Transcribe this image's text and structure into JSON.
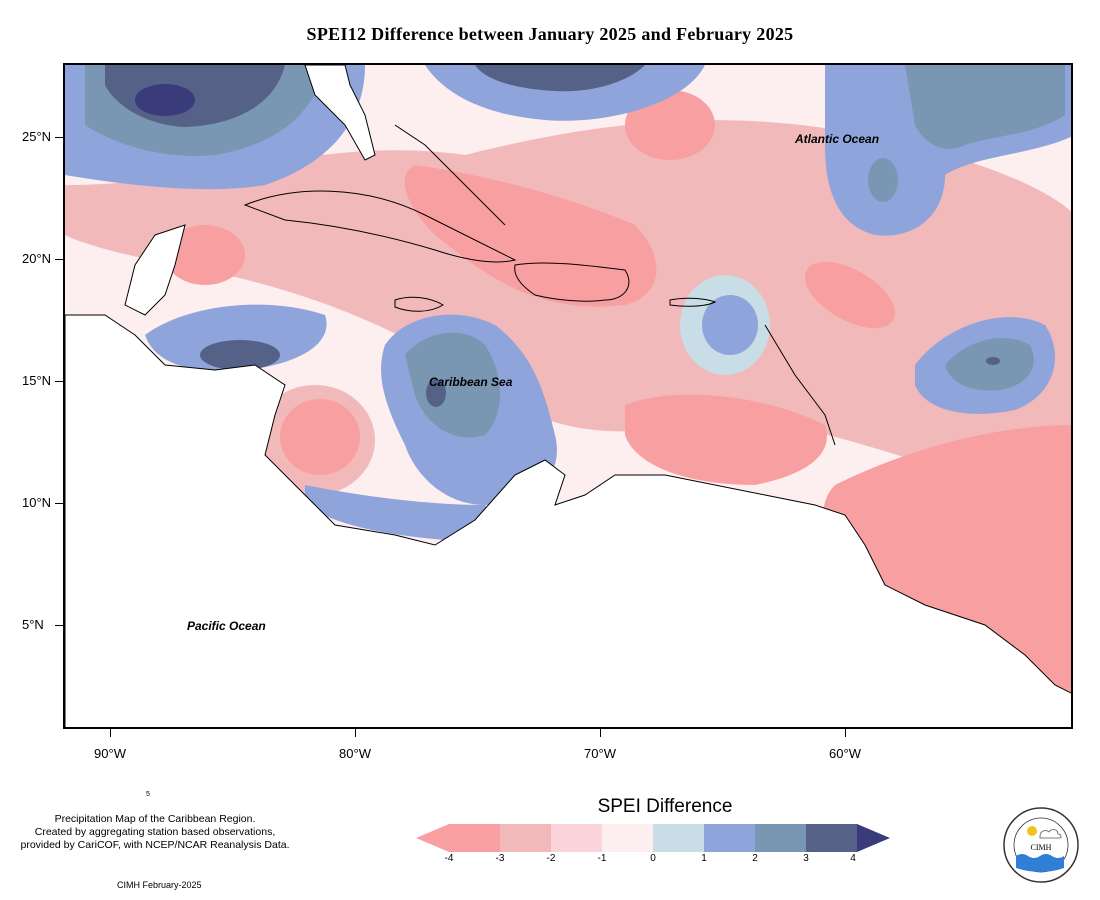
{
  "title": "SPEI12 Difference between January 2025 and February 2025",
  "map": {
    "y_axis_labels": [
      "25°N",
      "20°N",
      "15°N",
      "10°N",
      "5°N"
    ],
    "x_axis_labels": [
      "90°W",
      "80°W",
      "70°W",
      "60°W"
    ],
    "labels": {
      "atlantic": "Atlantic Ocean",
      "caribbean": "Caribbean Sea",
      "pacific": "Pacific Ocean"
    }
  },
  "notes": {
    "line1": "Precipitation Map of the Caribbean Region.",
    "line2": "Created by aggregating station based observations,",
    "line3": "provided by CariCOF, with NCEP/NCAR Reanalysis Data.",
    "credit": "CIMH February-2025",
    "small_mark": "5"
  },
  "legend": {
    "title": "SPEI Difference",
    "ticks": [
      "-4",
      "-3",
      "-2",
      "-1",
      "0",
      "1",
      "2",
      "3",
      "4"
    ],
    "colors": [
      "#f89fa1",
      "#f2b9bb",
      "#fbd3da",
      "#fdeef0",
      "#c9dde6",
      "#8ea4da",
      "#7997b3",
      "#556186",
      "#3a3b7a"
    ]
  },
  "logo": {
    "text": "CIMH",
    "ring_text": "Caribbean Institute for Meteorology and Hydrology"
  },
  "colors": {
    "dry_strong": "#f89fa1",
    "dry": "#f2b9bb",
    "neutral": "#fdeef0",
    "wet": "#8ea4da",
    "wet_strong": "#3a3b7a",
    "land": "#ffffff"
  }
}
